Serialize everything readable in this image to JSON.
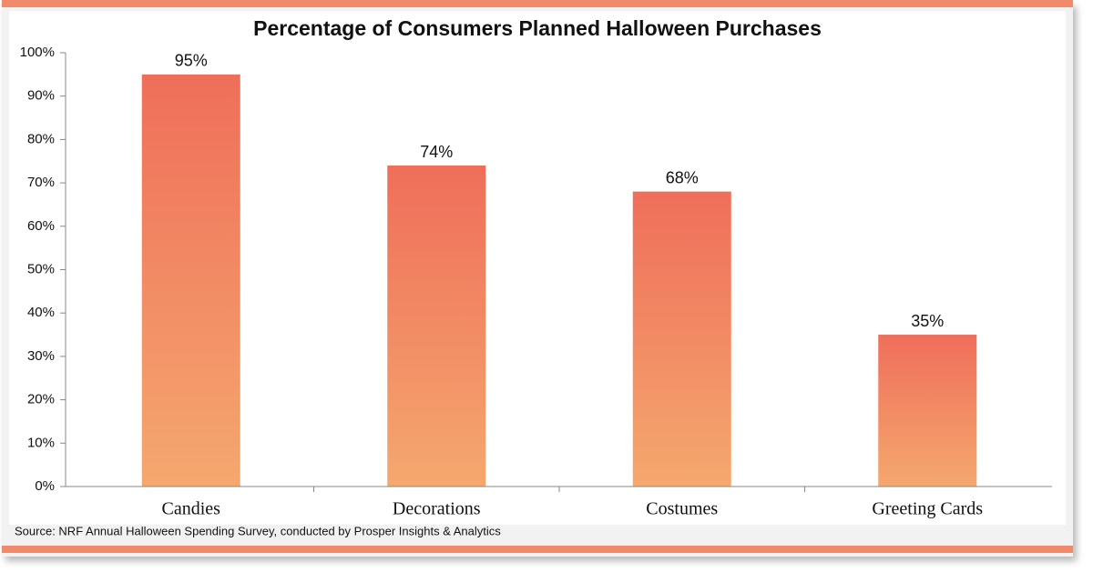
{
  "chart_data": {
    "type": "bar",
    "title": "Percentage of Consumers Planned Halloween Purchases",
    "categories": [
      "Candies",
      "Decorations",
      "Costumes",
      "Greeting Cards"
    ],
    "values": [
      95,
      74,
      68,
      35
    ],
    "value_labels": [
      "95%",
      "74%",
      "68%",
      "35%"
    ],
    "color": "#ef6e5a",
    "ylim": [
      0,
      100
    ],
    "yticks": [
      {
        "value": 0,
        "label": "0%"
      },
      {
        "value": 10,
        "label": "10%"
      },
      {
        "value": 20,
        "label": "20%"
      },
      {
        "value": 30,
        "label": "30%"
      },
      {
        "value": 40,
        "label": "40%"
      },
      {
        "value": 50,
        "label": "50%"
      },
      {
        "value": 60,
        "label": "60%"
      },
      {
        "value": 70,
        "label": "70%"
      },
      {
        "value": 80,
        "label": "80%"
      },
      {
        "value": 90,
        "label": "90%"
      },
      {
        "value": 100,
        "label": "100%"
      }
    ],
    "grid": false,
    "source": "Source: NRF Annual Halloween Spending Survey, conducted by Prosper Insights & Analytics"
  }
}
